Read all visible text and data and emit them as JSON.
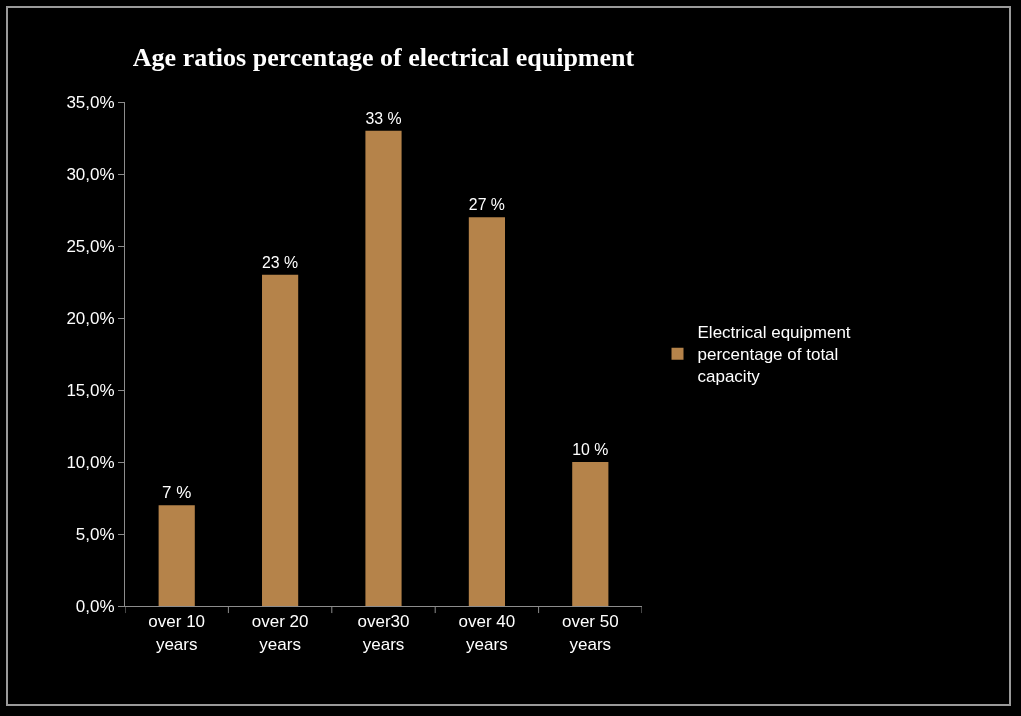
{
  "chart_data": {
    "type": "bar",
    "title": "Age ratios percentage of electrical equipment",
    "categories": [
      "over 10 years",
      "over 20 years",
      "over30 years",
      "over 40 years",
      "over 50 years"
    ],
    "series": [
      {
        "name": "Electrical equipment percentage of total capacity",
        "color": "#b5834a",
        "values": [
          7,
          23,
          33,
          27,
          10
        ],
        "value_labels": [
          "7 %",
          "23 %",
          "33 %",
          "27 %",
          "10 %"
        ]
      }
    ],
    "ylim": [
      0,
      35
    ],
    "yticks": [
      {
        "value": 0,
        "label": "0,0%"
      },
      {
        "value": 5,
        "label": "5,0%"
      },
      {
        "value": 10,
        "label": "10,0%"
      },
      {
        "value": 15,
        "label": "15,0%"
      },
      {
        "value": 20,
        "label": "20,0%"
      },
      {
        "value": 25,
        "label": "25,0%"
      },
      {
        "value": 30,
        "label": "30,0%"
      },
      {
        "value": 35,
        "label": "35,0%"
      }
    ],
    "grid": false,
    "legend": "right"
  }
}
